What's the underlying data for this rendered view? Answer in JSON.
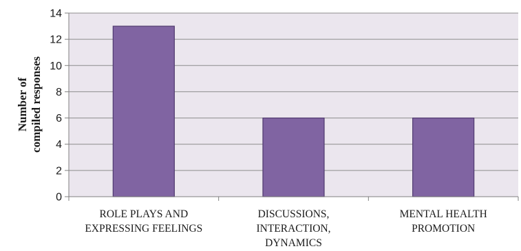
{
  "chart_data": {
    "type": "bar",
    "categories": [
      [
        "ROLE PLAYS AND",
        "EXPRESSING FEELINGS"
      ],
      [
        "DISCUSSIONS,",
        "INTERACTION,",
        "DYNAMICS"
      ],
      [
        "MENTAL HEALTH",
        "PROMOTION"
      ]
    ],
    "values": [
      13,
      6,
      6
    ],
    "ylabel": [
      "Number of",
      "compiled responses"
    ],
    "xlabel": "",
    "ylim": [
      0,
      14
    ],
    "yticks": [
      0,
      2,
      4,
      6,
      8,
      10,
      12,
      14
    ],
    "grid": true,
    "legend": "none",
    "colors": {
      "bar": "#8064a2",
      "bar_border": "#4f3a6e",
      "plot_bg": "#ebe6ee",
      "grid": "#8c8c8c",
      "axis": "#7f7f7f"
    }
  }
}
